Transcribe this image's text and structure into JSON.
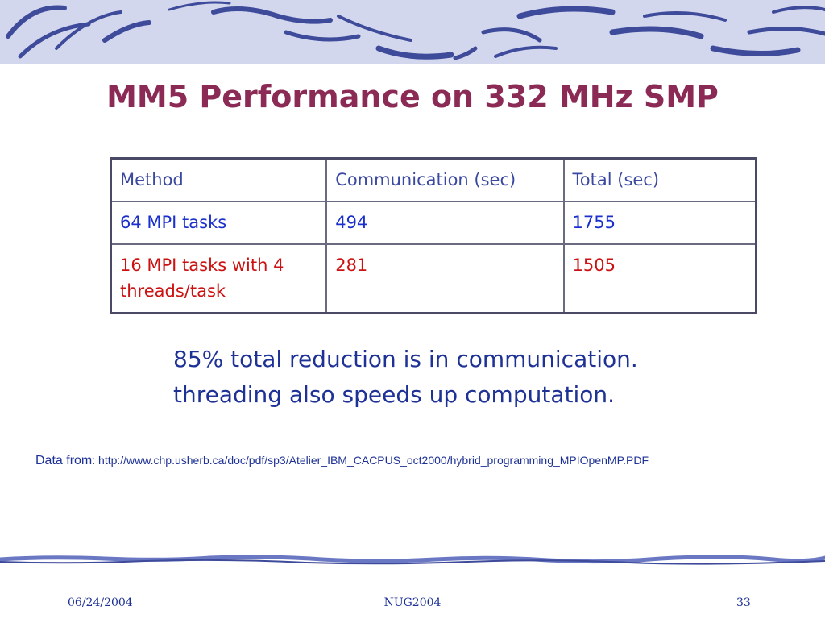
{
  "slide": {
    "title": "MM5 Performance on 332 MHz SMP",
    "table": {
      "headers": [
        "Method",
        "Communication (sec)",
        "Total (sec)"
      ],
      "rows": [
        [
          "64 MPI tasks",
          "494",
          "1755"
        ],
        [
          "16 MPI tasks with 4 threads/task",
          "281",
          "1505"
        ]
      ]
    },
    "notes": [
      "85% total reduction is in communication.",
      "threading also speeds up computation."
    ],
    "source": {
      "label": "Data from",
      "url": ": http://www.chp.usherb.ca/doc/pdf/sp3/Atelier_IBM_CACPUS_oct2000/hybrid_programming_MPIOpenMP.PDF"
    }
  },
  "footer": {
    "date": "06/24/2004",
    "center": "NUG2004",
    "page": "33"
  },
  "colors": {
    "title": "#8a2a55",
    "text_blue": "#1e3296",
    "row_blue": "#1a2fcc",
    "row_red": "#cc1111",
    "banner_bg": "#d3d7ee",
    "banner_strokes": "#3e4a9a"
  }
}
